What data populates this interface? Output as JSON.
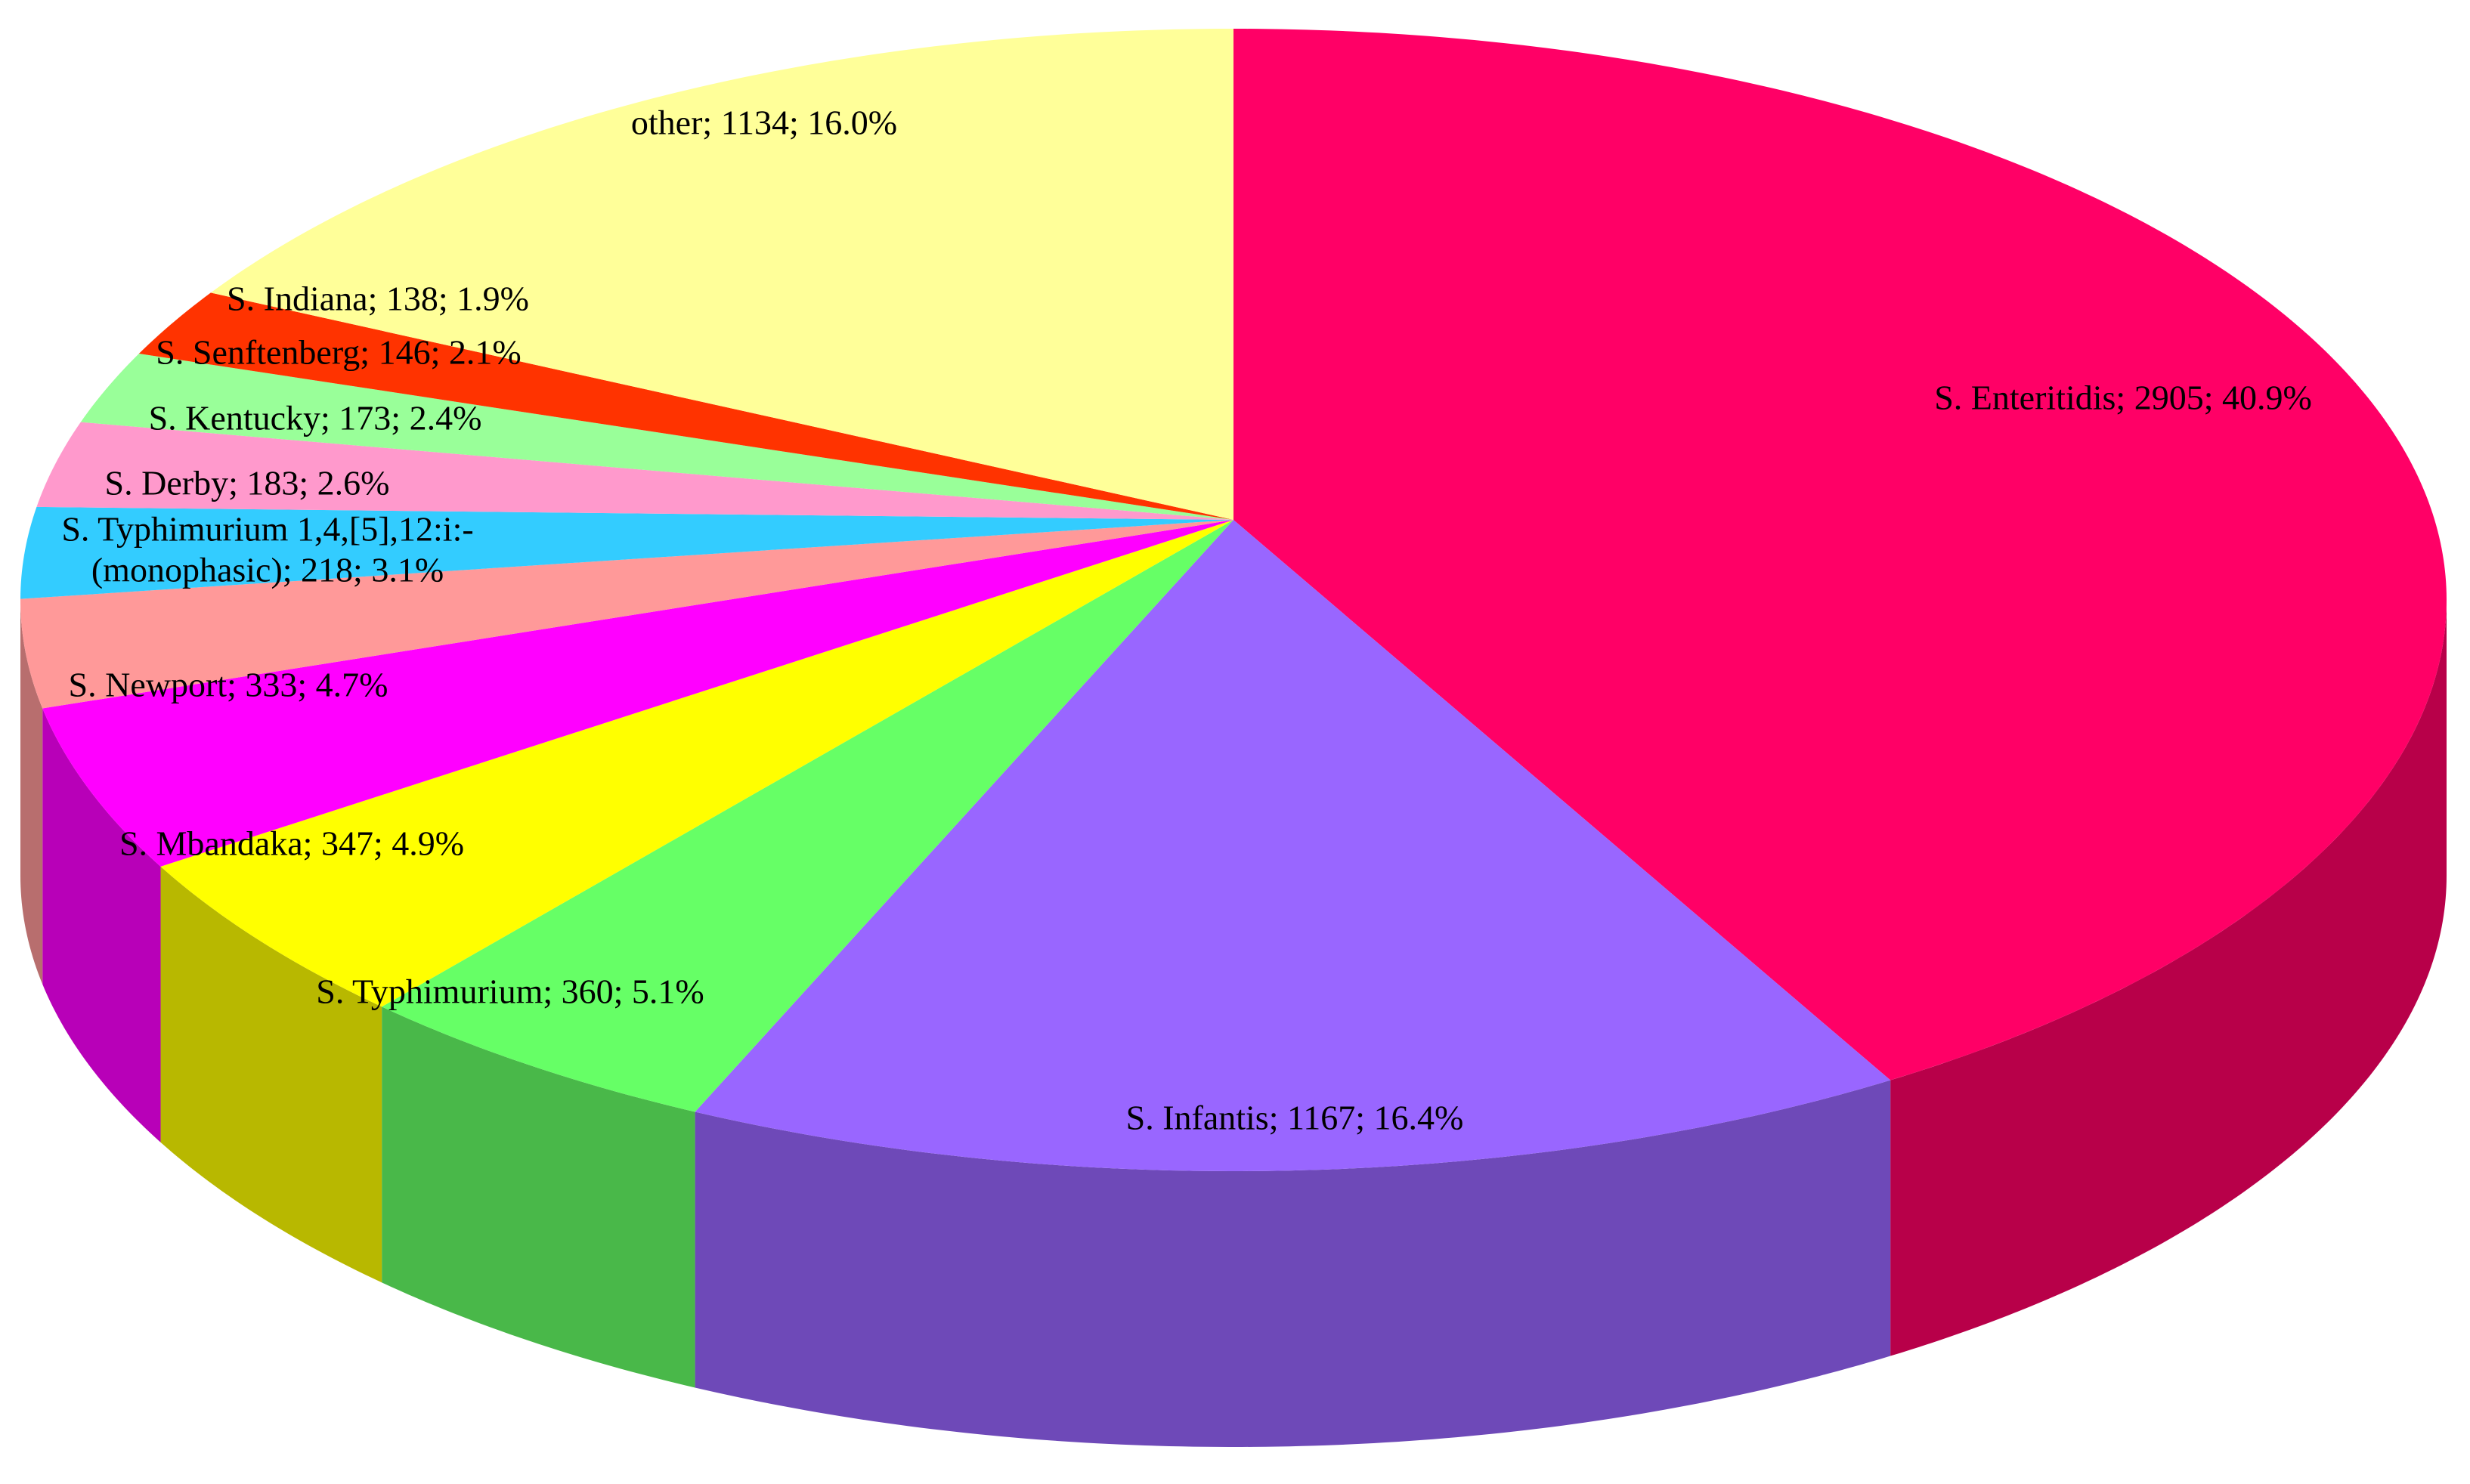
{
  "chart_data": {
    "type": "pie3d",
    "values": [
      2905,
      1167,
      360,
      347,
      333,
      218,
      183,
      173,
      146,
      138,
      1134
    ],
    "value_labels": [
      [
        "S. Enteritidis; 2905; 40.9%"
      ],
      [
        "S. Infantis; 1167; 16.4%"
      ],
      [
        "S. Typhimurium; 360; 5.1%"
      ],
      [
        "S. Mbandaka; 347; 4.9%"
      ],
      [
        "S. Newport; 333; 4.7%"
      ],
      [
        "S. Typhimurium 1,4,[5],12:i:-",
        "(monophasic); 218; 3.1%"
      ],
      [
        "S. Derby; 183; 2.6%"
      ],
      [
        "S. Kentucky; 173; 2.4%"
      ],
      [
        "S. Senftenberg; 146; 2.1%"
      ],
      [
        "S. Indiana; 138; 1.9%"
      ],
      [
        "other; 1134; 16.0%"
      ]
    ],
    "colors": [
      "#ff0066",
      "#9966ff",
      "#66ff66",
      "#ffff00",
      "#ff00ff",
      "#ff9999",
      "#33ccff",
      "#ff99cc",
      "#99ff99",
      "#ff3300",
      "#ffff99"
    ]
  }
}
